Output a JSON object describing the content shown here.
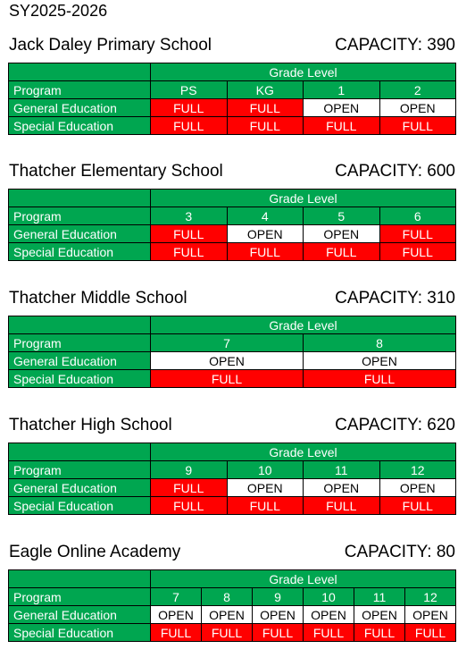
{
  "title": "SY2025-2026",
  "labels": {
    "grade_level": "Grade Level",
    "program": "Program",
    "general_education": "General Education",
    "special_education": "Special Education"
  },
  "schools": [
    {
      "name": "Jack Daley Primary School",
      "capacity": "CAPACITY: 390",
      "grades": [
        "PS",
        "KG",
        "1",
        "2"
      ],
      "general": [
        "FULL",
        "FULL",
        "OPEN",
        "OPEN"
      ],
      "special": [
        "FULL",
        "FULL",
        "FULL",
        "FULL"
      ]
    },
    {
      "name": "Thatcher Elementary School",
      "capacity": "CAPACITY: 600",
      "grades": [
        "3",
        "4",
        "5",
        "6"
      ],
      "general": [
        "FULL",
        "OPEN",
        "OPEN",
        "FULL"
      ],
      "special": [
        "FULL",
        "FULL",
        "FULL",
        "FULL"
      ]
    },
    {
      "name": "Thatcher Middle School",
      "capacity": "CAPACITY: 310",
      "grades": [
        "7",
        "8"
      ],
      "general": [
        "OPEN",
        "OPEN"
      ],
      "special": [
        "FULL",
        "FULL"
      ]
    },
    {
      "name": "Thatcher High School",
      "capacity": "CAPACITY: 620",
      "grades": [
        "9",
        "10",
        "11",
        "12"
      ],
      "general": [
        "FULL",
        "OPEN",
        "OPEN",
        "OPEN"
      ],
      "special": [
        "FULL",
        "FULL",
        "FULL",
        "FULL"
      ]
    },
    {
      "name": "Eagle Online Academy",
      "capacity": "CAPACITY: 80",
      "grades": [
        "7",
        "8",
        "9",
        "10",
        "11",
        "12"
      ],
      "general": [
        "OPEN",
        "OPEN",
        "OPEN",
        "OPEN",
        "OPEN",
        "OPEN"
      ],
      "special": [
        "FULL",
        "FULL",
        "FULL",
        "FULL",
        "FULL",
        "FULL"
      ]
    }
  ],
  "colors": {
    "header_green": "#00a650",
    "full_red": "#ff0000",
    "open_white": "#ffffff"
  }
}
